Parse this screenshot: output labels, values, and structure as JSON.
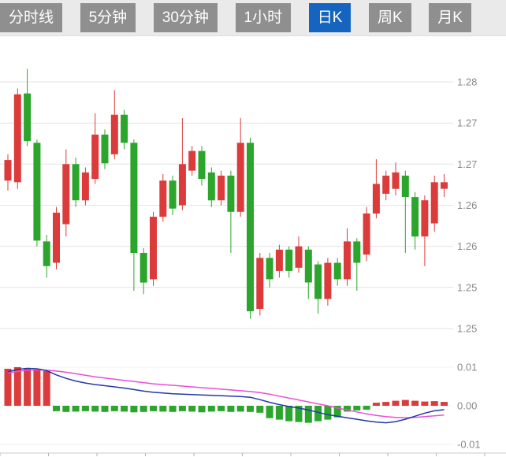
{
  "toolbar": {
    "tabs": [
      {
        "label": "分时线",
        "active": false
      },
      {
        "label": "5分钟",
        "active": false
      },
      {
        "label": "30分钟",
        "active": false
      },
      {
        "label": "1小时",
        "active": false
      },
      {
        "label": "日K",
        "active": true
      },
      {
        "label": "周K",
        "active": false
      },
      {
        "label": "月K",
        "active": false
      }
    ],
    "active_label": "日K",
    "colors": {
      "bar_bg": "#eaeaea",
      "tab_bg": "#8f8f8f",
      "tab_active_bg": "#1565c0",
      "tab_text": "#ffffff"
    }
  },
  "chart_data": {
    "type": "candlestick",
    "panels": [
      "price",
      "macd"
    ],
    "grid": true,
    "legend_position": "none",
    "price_axis": {
      "labels": [
        "1.28",
        "1.27",
        "1.27",
        "1.26",
        "1.26",
        "1.25",
        "1.25"
      ],
      "values": [
        1.28,
        1.275,
        1.27,
        1.265,
        1.26,
        1.255,
        1.25
      ],
      "range": [
        1.2485,
        1.282
      ]
    },
    "candles": [
      {
        "o": 1.268,
        "h": 1.2712,
        "l": 1.2668,
        "c": 1.2705
      },
      {
        "o": 1.2678,
        "h": 1.2792,
        "l": 1.267,
        "c": 1.2785
      },
      {
        "o": 1.2786,
        "h": 1.2816,
        "l": 1.2722,
        "c": 1.2728
      },
      {
        "o": 1.2726,
        "h": 1.273,
        "l": 1.26,
        "c": 1.2607
      },
      {
        "o": 1.2606,
        "h": 1.2614,
        "l": 1.2562,
        "c": 1.2576
      },
      {
        "o": 1.258,
        "h": 1.2648,
        "l": 1.2572,
        "c": 1.2641
      },
      {
        "o": 1.2627,
        "h": 1.2718,
        "l": 1.2612,
        "c": 1.27
      },
      {
        "o": 1.27,
        "h": 1.2708,
        "l": 1.2648,
        "c": 1.2656
      },
      {
        "o": 1.2656,
        "h": 1.2696,
        "l": 1.265,
        "c": 1.269
      },
      {
        "o": 1.2682,
        "h": 1.2762,
        "l": 1.2676,
        "c": 1.2736
      },
      {
        "o": 1.2736,
        "h": 1.2742,
        "l": 1.2694,
        "c": 1.2701
      },
      {
        "o": 1.2712,
        "h": 1.279,
        "l": 1.2706,
        "c": 1.276
      },
      {
        "o": 1.276,
        "h": 1.2766,
        "l": 1.2718,
        "c": 1.2726
      },
      {
        "o": 1.2726,
        "h": 1.273,
        "l": 1.2546,
        "c": 1.2592
      },
      {
        "o": 1.2592,
        "h": 1.2598,
        "l": 1.2542,
        "c": 1.2556
      },
      {
        "o": 1.256,
        "h": 1.2642,
        "l": 1.2552,
        "c": 1.2636
      },
      {
        "o": 1.2636,
        "h": 1.2688,
        "l": 1.263,
        "c": 1.268
      },
      {
        "o": 1.268,
        "h": 1.2686,
        "l": 1.2638,
        "c": 1.2646
      },
      {
        "o": 1.265,
        "h": 1.2756,
        "l": 1.2644,
        "c": 1.27
      },
      {
        "o": 1.2692,
        "h": 1.2722,
        "l": 1.2686,
        "c": 1.2716
      },
      {
        "o": 1.2716,
        "h": 1.2722,
        "l": 1.2674,
        "c": 1.2682
      },
      {
        "o": 1.269,
        "h": 1.2696,
        "l": 1.2648,
        "c": 1.2656
      },
      {
        "o": 1.2656,
        "h": 1.2692,
        "l": 1.265,
        "c": 1.2686
      },
      {
        "o": 1.2686,
        "h": 1.2692,
        "l": 1.2592,
        "c": 1.2642
      },
      {
        "o": 1.2642,
        "h": 1.2756,
        "l": 1.2636,
        "c": 1.2726
      },
      {
        "o": 1.2726,
        "h": 1.2732,
        "l": 1.2512,
        "c": 1.2521
      },
      {
        "o": 1.2524,
        "h": 1.2592,
        "l": 1.2516,
        "c": 1.2586
      },
      {
        "o": 1.2586,
        "h": 1.2592,
        "l": 1.255,
        "c": 1.256
      },
      {
        "o": 1.257,
        "h": 1.2602,
        "l": 1.2562,
        "c": 1.2596
      },
      {
        "o": 1.2596,
        "h": 1.26,
        "l": 1.2562,
        "c": 1.257
      },
      {
        "o": 1.2574,
        "h": 1.2612,
        "l": 1.2568,
        "c": 1.26
      },
      {
        "o": 1.2596,
        "h": 1.26,
        "l": 1.2536,
        "c": 1.2556
      },
      {
        "o": 1.2578,
        "h": 1.2582,
        "l": 1.2518,
        "c": 1.2536
      },
      {
        "o": 1.2536,
        "h": 1.2586,
        "l": 1.2528,
        "c": 1.258
      },
      {
        "o": 1.258,
        "h": 1.2586,
        "l": 1.2552,
        "c": 1.256
      },
      {
        "o": 1.256,
        "h": 1.2622,
        "l": 1.2552,
        "c": 1.2606
      },
      {
        "o": 1.2606,
        "h": 1.261,
        "l": 1.2546,
        "c": 1.258
      },
      {
        "o": 1.259,
        "h": 1.2648,
        "l": 1.2582,
        "c": 1.264
      },
      {
        "o": 1.264,
        "h": 1.2706,
        "l": 1.2634,
        "c": 1.2676
      },
      {
        "o": 1.2664,
        "h": 1.2692,
        "l": 1.2656,
        "c": 1.2686
      },
      {
        "o": 1.267,
        "h": 1.2702,
        "l": 1.2662,
        "c": 1.269
      },
      {
        "o": 1.2686,
        "h": 1.2692,
        "l": 1.2592,
        "c": 1.266
      },
      {
        "o": 1.266,
        "h": 1.2666,
        "l": 1.2596,
        "c": 1.2612
      },
      {
        "o": 1.2612,
        "h": 1.2662,
        "l": 1.2576,
        "c": 1.2656
      },
      {
        "o": 1.2628,
        "h": 1.2686,
        "l": 1.2618,
        "c": 1.2678
      },
      {
        "o": 1.267,
        "h": 1.2688,
        "l": 1.266,
        "c": 1.2678
      }
    ],
    "macd": {
      "axis": {
        "labels": [
          "0.01",
          "0.00",
          "-0.01"
        ],
        "values": [
          0.01,
          0.0,
          -0.01
        ]
      },
      "dif": [
        0.0088,
        0.0094,
        0.0097,
        0.0096,
        0.0091,
        0.008,
        0.0071,
        0.0064,
        0.0059,
        0.0055,
        0.0052,
        0.0049,
        0.0046,
        0.0042,
        0.0038,
        0.0035,
        0.0033,
        0.0031,
        0.003,
        0.0029,
        0.0028,
        0.0027,
        0.0026,
        0.0025,
        0.0024,
        0.0022,
        0.0016,
        0.0009,
        0.0003,
        -0.0002,
        -0.0006,
        -0.0011,
        -0.0017,
        -0.0023,
        -0.0027,
        -0.0031,
        -0.0035,
        -0.0039,
        -0.0042,
        -0.0044,
        -0.0041,
        -0.0035,
        -0.0027,
        -0.0019,
        -0.0013,
        -0.001
      ],
      "dea": [
        0.0085,
        0.0089,
        0.0092,
        0.0093,
        0.0092,
        0.009,
        0.0087,
        0.0083,
        0.0079,
        0.0075,
        0.0072,
        0.0069,
        0.0066,
        0.0063,
        0.006,
        0.0057,
        0.0055,
        0.0053,
        0.0051,
        0.0049,
        0.0047,
        0.0045,
        0.0043,
        0.0041,
        0.0039,
        0.0037,
        0.0034,
        0.003,
        0.0025,
        0.002,
        0.0015,
        0.001,
        0.0005,
        0.0,
        -0.0006,
        -0.0011,
        -0.0016,
        -0.0021,
        -0.0025,
        -0.0028,
        -0.003,
        -0.0031,
        -0.003,
        -0.0028,
        -0.0026,
        -0.0024
      ],
      "histogram": [
        0.0096,
        0.01,
        0.0098,
        0.0094,
        0.009,
        -0.0014,
        -0.0016,
        -0.0015,
        -0.0014,
        -0.0015,
        -0.0016,
        -0.0014,
        -0.0015,
        -0.0017,
        -0.0016,
        -0.0014,
        -0.0015,
        -0.0016,
        -0.0014,
        -0.0015,
        -0.0017,
        -0.0015,
        -0.0014,
        -0.0016,
        -0.0015,
        -0.0016,
        -0.0018,
        -0.0032,
        -0.0036,
        -0.004,
        -0.0042,
        -0.0044,
        -0.004,
        -0.0036,
        -0.003,
        -0.0015,
        -0.0012,
        -0.001,
        0.0008,
        0.001,
        0.0013,
        0.0015,
        0.0013,
        0.0011,
        0.0012,
        0.001
      ]
    },
    "colors": {
      "up": "#dc3b3b",
      "down": "#2ca52c",
      "dif": "#2239a8",
      "dea": "#e94fd5",
      "grid": "#e3e3e3",
      "axis_text": "#8a8a8a",
      "x_axis": "#c9c9c9"
    }
  }
}
